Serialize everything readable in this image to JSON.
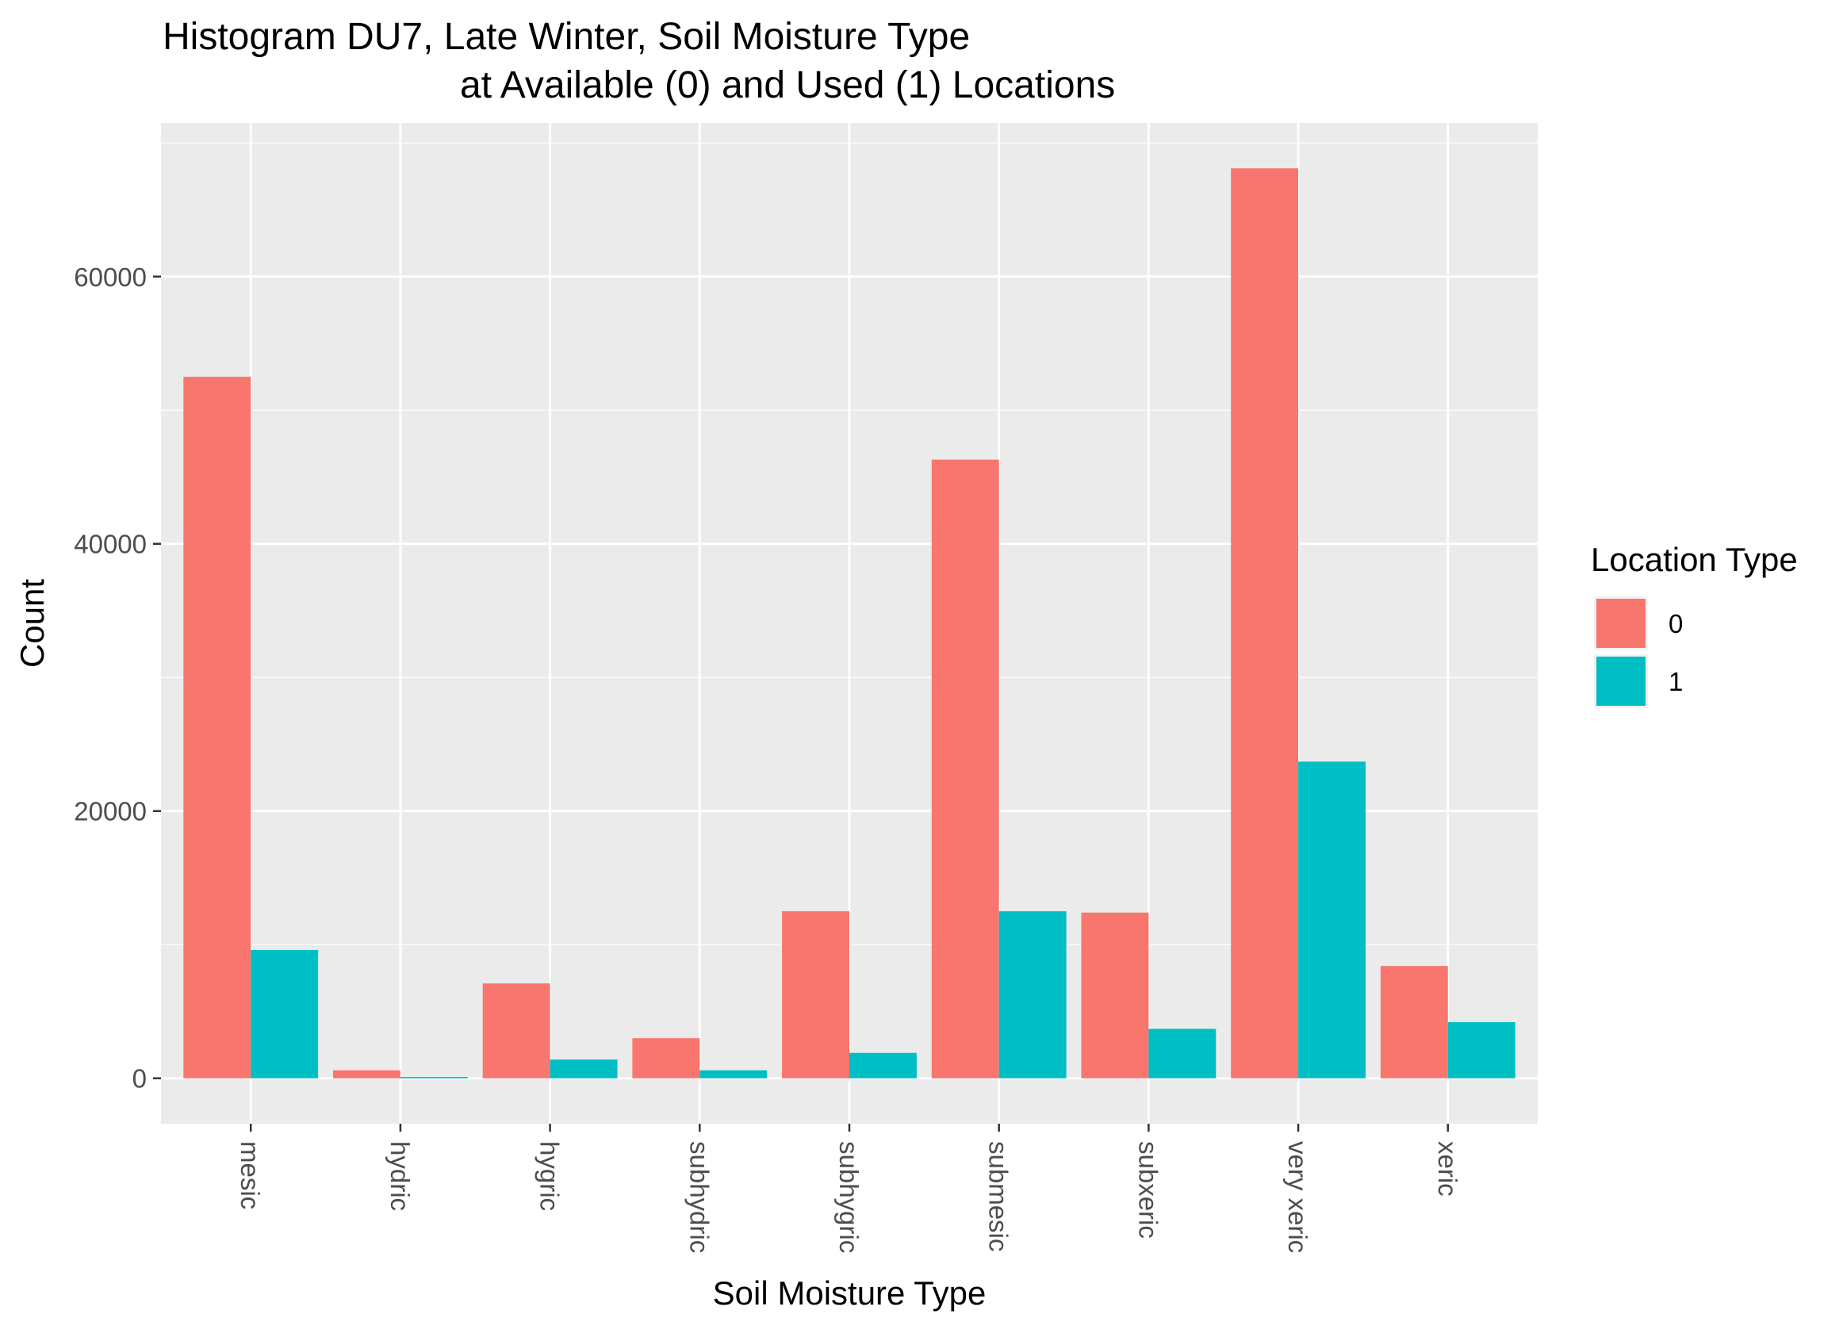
{
  "chart_data": {
    "type": "bar",
    "title_line1": "Histogram DU7, Late Winter, Soil Moisture Type",
    "title_line2": "at Available (0) and Used (1) Locations",
    "xlabel": "Soil Moisture Type",
    "ylabel": "Count",
    "categories": [
      "mesic",
      "hydric",
      "hygric",
      "subhydric",
      "subhygric",
      "submesic",
      "subxeric",
      "very xeric",
      "xeric"
    ],
    "series": [
      {
        "name": "0",
        "color": "#F8766D",
        "values": [
          52500,
          600,
          7100,
          3000,
          12500,
          46300,
          12400,
          68100,
          8400
        ]
      },
      {
        "name": "1",
        "color": "#00BFC4",
        "values": [
          9600,
          100,
          1400,
          600,
          1900,
          12500,
          3700,
          23700,
          4200
        ]
      }
    ],
    "yticks": [
      0,
      20000,
      40000,
      60000
    ],
    "ytick_labels": [
      "0",
      "20000",
      "40000",
      "60000"
    ],
    "ylim": [
      -3400,
      71500
    ],
    "grid": true,
    "legend": {
      "title": "Location Type",
      "position": "right"
    },
    "background": "#EBEBEB"
  }
}
